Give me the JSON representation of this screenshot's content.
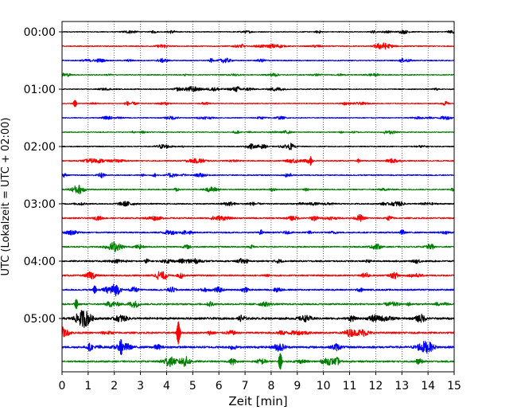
{
  "chart_data": {
    "type": "line",
    "xlabel": "Zeit  [min]",
    "ylabel": "UTC (Lokalzeit = UTC + 02:00)",
    "xlim": [
      0,
      15
    ],
    "x_ticks": [
      "0",
      "1",
      "2",
      "3",
      "4",
      "5",
      "6",
      "7",
      "8",
      "9",
      "10",
      "11",
      "12",
      "13",
      "14",
      "15"
    ],
    "y_tick_labels": [
      "00:00",
      "01:00",
      "02:00",
      "03:00",
      "04:00",
      "05:00"
    ],
    "y_tick_rows": [
      0,
      4,
      8,
      12,
      16,
      20
    ],
    "grid": "vertical dotted",
    "colors": [
      "#000000",
      "#ff0000",
      "#0000ff",
      "#008000"
    ],
    "rows": [
      {
        "start": "00:00",
        "color": "#000000",
        "amplitude": 0.12,
        "spikes": []
      },
      {
        "start": "00:15",
        "color": "#ff0000",
        "amplitude": 0.14,
        "spikes": []
      },
      {
        "start": "00:30",
        "color": "#0000ff",
        "amplitude": 0.14,
        "spikes": []
      },
      {
        "start": "00:45",
        "color": "#008000",
        "amplitude": 0.13,
        "spikes": []
      },
      {
        "start": "01:00",
        "color": "#000000",
        "amplitude": 0.13,
        "spikes": []
      },
      {
        "start": "01:15",
        "color": "#ff0000",
        "amplitude": 0.12,
        "spikes": [
          {
            "t": 0.5,
            "a": 0.45
          }
        ]
      },
      {
        "start": "01:30",
        "color": "#0000ff",
        "amplitude": 0.12,
        "spikes": []
      },
      {
        "start": "01:45",
        "color": "#008000",
        "amplitude": 0.12,
        "spikes": []
      },
      {
        "start": "02:00",
        "color": "#000000",
        "amplitude": 0.14,
        "spikes": []
      },
      {
        "start": "02:15",
        "color": "#ff0000",
        "amplitude": 0.16,
        "spikes": [
          {
            "t": 9.5,
            "a": 0.55
          }
        ]
      },
      {
        "start": "02:30",
        "color": "#0000ff",
        "amplitude": 0.16,
        "spikes": []
      },
      {
        "start": "02:45",
        "color": "#008000",
        "amplitude": 0.15,
        "spikes": []
      },
      {
        "start": "03:00",
        "color": "#000000",
        "amplitude": 0.18,
        "spikes": []
      },
      {
        "start": "03:15",
        "color": "#ff0000",
        "amplitude": 0.2,
        "spikes": []
      },
      {
        "start": "03:30",
        "color": "#0000ff",
        "amplitude": 0.2,
        "spikes": []
      },
      {
        "start": "03:45",
        "color": "#008000",
        "amplitude": 0.19,
        "spikes": []
      },
      {
        "start": "04:00",
        "color": "#000000",
        "amplitude": 0.22,
        "spikes": []
      },
      {
        "start": "04:15",
        "color": "#ff0000",
        "amplitude": 0.22,
        "spikes": []
      },
      {
        "start": "04:30",
        "color": "#0000ff",
        "amplitude": 0.22,
        "spikes": [
          {
            "t": 1.25,
            "a": 0.5
          }
        ]
      },
      {
        "start": "04:45",
        "color": "#008000",
        "amplitude": 0.24,
        "spikes": [
          {
            "t": 0.55,
            "a": 0.6
          }
        ]
      },
      {
        "start": "05:00",
        "color": "#000000",
        "amplitude": 0.3,
        "spikes": []
      },
      {
        "start": "05:15",
        "color": "#ff0000",
        "amplitude": 0.26,
        "spikes": [
          {
            "t": 4.45,
            "a": 1.5
          }
        ]
      },
      {
        "start": "05:30",
        "color": "#0000ff",
        "amplitude": 0.3,
        "spikes": [
          {
            "t": 2.25,
            "a": 0.9
          }
        ]
      },
      {
        "start": "05:45",
        "color": "#008000",
        "amplitude": 0.24,
        "spikes": [
          {
            "t": 8.35,
            "a": 1.1
          }
        ]
      }
    ]
  }
}
